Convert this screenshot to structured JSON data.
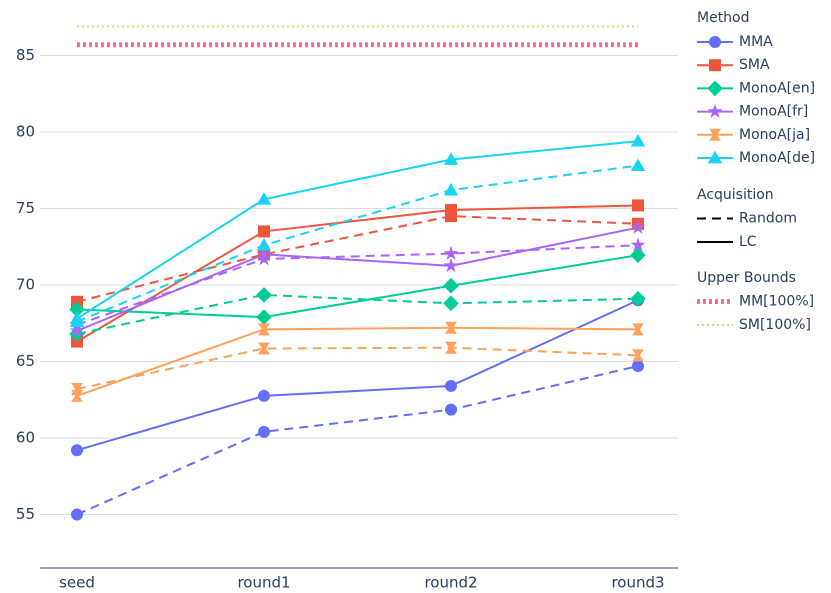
{
  "chart_data": {
    "type": "line",
    "categories": [
      "seed",
      "round1",
      "round2",
      "round3"
    ],
    "ylim": [
      51.5,
      88.3
    ],
    "yticks": [
      55,
      60,
      65,
      70,
      75,
      80,
      85
    ],
    "grid": true,
    "legend_position": "right",
    "method_title": "Method",
    "acquisition_title": "Acquisition",
    "bounds_title": "Upper Bounds",
    "acquisitions": [
      {
        "name": "Random",
        "dash": "dashed"
      },
      {
        "name": "LC",
        "dash": "solid"
      }
    ],
    "series": [
      {
        "name": "MMA",
        "color": "#636efa",
        "marker": "circle",
        "values": [
          [
            55.0,
            60.4,
            61.85,
            64.7
          ],
          [
            59.2,
            62.75,
            63.4,
            69.0
          ]
        ]
      },
      {
        "name": "SMA",
        "color": "#ef553b",
        "marker": "square",
        "values": [
          [
            68.9,
            72.0,
            74.5,
            74.0
          ],
          [
            66.3,
            73.5,
            74.9,
            75.2
          ]
        ]
      },
      {
        "name": "MonoA[en]",
        "color": "#00cc96",
        "marker": "diamond",
        "values": [
          [
            66.8,
            69.35,
            68.8,
            69.1
          ],
          [
            68.4,
            67.9,
            69.95,
            71.95
          ]
        ]
      },
      {
        "name": "MonoA[fr]",
        "color": "#ab63fa",
        "marker": "star",
        "values": [
          [
            67.4,
            71.7,
            72.05,
            72.6
          ],
          [
            67.0,
            72.0,
            71.25,
            73.75
          ]
        ]
      },
      {
        "name": "MonoA[ja]",
        "color": "#ffa15a",
        "marker": "hourglass",
        "values": [
          [
            63.2,
            65.85,
            65.9,
            65.4
          ],
          [
            62.75,
            67.1,
            67.2,
            67.1
          ]
        ]
      },
      {
        "name": "MonoA[de]",
        "color": "#19d3f3",
        "marker": "triangle",
        "values": [
          [
            67.6,
            72.6,
            76.2,
            77.8
          ],
          [
            67.8,
            75.6,
            78.2,
            79.4
          ]
        ]
      }
    ],
    "bounds": [
      {
        "name": "MM[100%]",
        "color": "#ff6692",
        "style": "thick-dotted",
        "value": 85.7
      },
      {
        "name": "SM[100%]",
        "color": "#b6e880",
        "style": "dotted",
        "value": 86.9
      }
    ]
  }
}
